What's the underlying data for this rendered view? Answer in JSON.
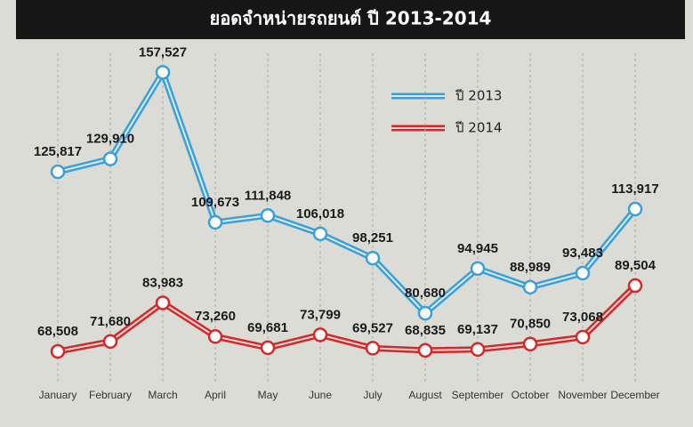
{
  "chart_data": {
    "type": "line",
    "title": "ยอดจำหน่ายรถยนต์ ปี 2013-2014",
    "categories": [
      "January",
      "February",
      "March",
      "April",
      "May",
      "June",
      "July",
      "August",
      "September",
      "October",
      "November",
      "December"
    ],
    "series": [
      {
        "name": "ปี 2013",
        "color": "#3d9fd8",
        "values": [
          125817,
          129910,
          157527,
          109673,
          111848,
          106018,
          98251,
          80680,
          94945,
          88989,
          93483,
          113917
        ],
        "value_labels": [
          "125,817",
          "129,910",
          "157,527",
          "109,673",
          "111,848",
          "106,018",
          "98,251",
          "80,680",
          "94,945",
          "88,989",
          "93,483",
          "113,917"
        ]
      },
      {
        "name": "ปี 2014",
        "color": "#d22a2a",
        "values": [
          68508,
          71680,
          83983,
          73260,
          69681,
          73799,
          69527,
          68835,
          69137,
          70850,
          73068,
          89504
        ],
        "value_labels": [
          "68,508",
          "71,680",
          "83,983",
          "73,260",
          "69,681",
          "73,799",
          "69,527",
          "68,835",
          "69,137",
          "70,850",
          "73,068",
          "89,504"
        ]
      }
    ],
    "ylim": [
      60000,
      165000
    ],
    "grid": true
  }
}
